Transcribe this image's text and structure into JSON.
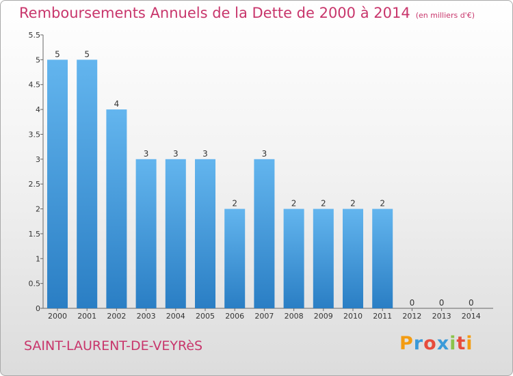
{
  "header": {
    "title": "Remboursements Annuels de la Dette de 2000 à 2014",
    "unit": "(en milliers d'€)"
  },
  "footer": {
    "place": "SAINT-LAURENT-DE-VEYRèS",
    "brand": "Proxiti"
  },
  "colors": {
    "bar_top": "#63b5ee",
    "bar_bottom": "#2a7ec4",
    "title": "#c8356b"
  },
  "chart_data": {
    "type": "bar",
    "title": "Remboursements Annuels de la Dette de 2000 à 2014",
    "xlabel": "",
    "ylabel": "",
    "categories": [
      "2000",
      "2001",
      "2002",
      "2003",
      "2004",
      "2005",
      "2006",
      "2007",
      "2008",
      "2009",
      "2010",
      "2011",
      "2012",
      "2013",
      "2014"
    ],
    "values": [
      5,
      5,
      4,
      3,
      3,
      3,
      2,
      3,
      2,
      2,
      2,
      2,
      0,
      0,
      0
    ],
    "data_labels": [
      "5",
      "5",
      "4",
      "3",
      "3",
      "3",
      "2",
      "3",
      "2",
      "2",
      "2",
      "2",
      "0",
      "0",
      "0"
    ],
    "ylim": [
      0,
      5.5
    ],
    "yticks": [
      0,
      0.5,
      1,
      1.5,
      2,
      2.5,
      3,
      3.5,
      4,
      4.5,
      5,
      5.5
    ],
    "ytick_labels": [
      "0",
      "0.5",
      "1",
      "1.5",
      "2",
      "2.5",
      "3",
      "3.5",
      "4",
      "4.5",
      "5",
      "5.5"
    ],
    "grid": false,
    "legend": "none"
  }
}
